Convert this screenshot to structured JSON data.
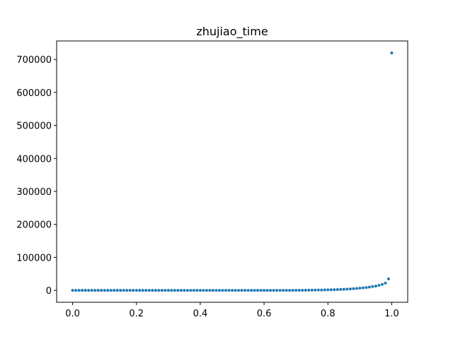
{
  "chart_data": {
    "type": "scatter",
    "title": "zhujiao_time",
    "xlabel": "",
    "ylabel": "",
    "xlim": [
      -0.05,
      1.05
    ],
    "ylim": [
      -36000,
      756000
    ],
    "xticks": [
      0.0,
      0.2,
      0.4,
      0.6,
      0.8,
      1.0
    ],
    "xtick_labels": [
      "0.0",
      "0.2",
      "0.4",
      "0.6",
      "0.8",
      "1.0"
    ],
    "yticks": [
      0,
      100000,
      200000,
      300000,
      400000,
      500000,
      600000,
      700000
    ],
    "ytick_labels": [
      "0",
      "100000",
      "200000",
      "300000",
      "400000",
      "500000",
      "600000",
      "700000"
    ],
    "grid": false,
    "series": [
      {
        "color": "#1f77b4",
        "x": [
          0.0,
          0.01,
          0.02,
          0.03,
          0.04,
          0.05,
          0.06,
          0.07,
          0.08,
          0.09,
          0.1,
          0.11,
          0.12,
          0.13,
          0.14,
          0.15,
          0.16,
          0.17,
          0.18,
          0.19,
          0.2,
          0.21,
          0.22,
          0.23,
          0.24,
          0.25,
          0.26,
          0.27,
          0.28,
          0.29,
          0.3,
          0.31,
          0.32,
          0.33,
          0.34,
          0.35,
          0.36,
          0.37,
          0.38,
          0.39,
          0.4,
          0.41,
          0.42,
          0.43,
          0.44,
          0.45,
          0.46,
          0.47,
          0.48,
          0.49,
          0.5,
          0.51,
          0.52,
          0.53,
          0.54,
          0.55,
          0.56,
          0.57,
          0.58,
          0.59,
          0.6,
          0.61,
          0.62,
          0.63,
          0.64,
          0.65,
          0.66,
          0.67,
          0.68,
          0.69,
          0.7,
          0.71,
          0.72,
          0.73,
          0.74,
          0.75,
          0.76,
          0.77,
          0.78,
          0.79,
          0.8,
          0.81,
          0.82,
          0.83,
          0.84,
          0.85,
          0.86,
          0.87,
          0.88,
          0.89,
          0.9,
          0.91,
          0.92,
          0.93,
          0.94,
          0.95,
          0.96,
          0.97,
          0.98,
          0.99,
          1.0
        ],
        "y": [
          0,
          0,
          0,
          0,
          0,
          0,
          0,
          0,
          0,
          0,
          0,
          0,
          0,
          0,
          0,
          0,
          0,
          0,
          0,
          0,
          0,
          0,
          0,
          0,
          0,
          0,
          0,
          0,
          0,
          0,
          0,
          0,
          0,
          0,
          0,
          0,
          0,
          0,
          0,
          0,
          0,
          0,
          0,
          0,
          0,
          0,
          0,
          0,
          0,
          0,
          0,
          0,
          0,
          0,
          0,
          0,
          0,
          0,
          0,
          0,
          0,
          0,
          0,
          0,
          0,
          0,
          0,
          0,
          0,
          0,
          500,
          500,
          500,
          600,
          700,
          800,
          1000,
          1100,
          1300,
          1500,
          1700,
          2000,
          2300,
          2600,
          3000,
          3400,
          3900,
          4500,
          5100,
          5800,
          6800,
          7700,
          8700,
          10000,
          11500,
          13000,
          15500,
          18000,
          22000,
          35000,
          720000
        ]
      }
    ]
  }
}
